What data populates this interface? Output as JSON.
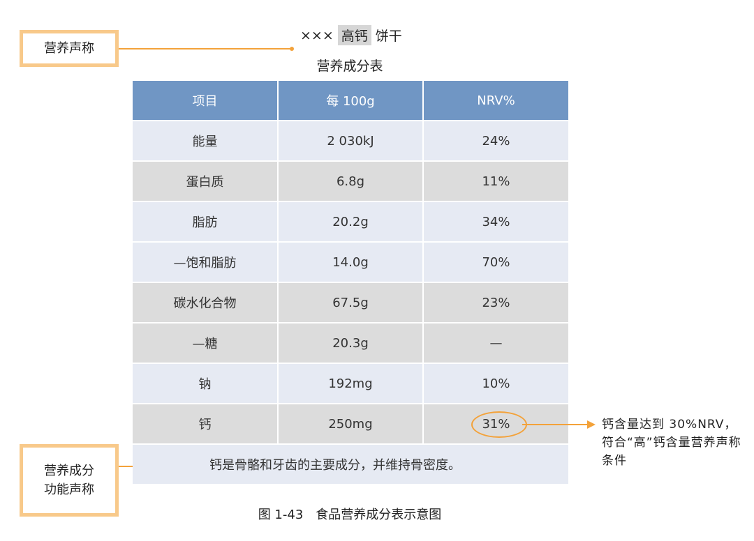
{
  "header": {
    "product_prefix": "×××",
    "highlight": "高钙",
    "product_suffix": "饼干",
    "subtitle": "营养成分表"
  },
  "callouts": {
    "claim_label": "营养声称",
    "function_label_line1": "营养成分",
    "function_label_line2": "功能声称"
  },
  "table": {
    "columns": [
      "项目",
      "每 100g",
      "NRV%"
    ],
    "rows": [
      [
        "能量",
        "2 030kJ",
        "24%"
      ],
      [
        "蛋白质",
        "6.8g",
        "11%"
      ],
      [
        "脂肪",
        "20.2g",
        "34%"
      ],
      [
        "—饱和脂肪",
        "14.0g",
        "70%"
      ],
      [
        "碳水化合物",
        "67.5g",
        "23%"
      ],
      [
        "—糖",
        "20.3g",
        "—"
      ],
      [
        "钠",
        "192mg",
        "10%"
      ],
      [
        "钙",
        "250mg",
        "31%"
      ]
    ],
    "footer": "钙是骨骼和牙齿的主要成分，并维持骨密度。"
  },
  "note": "钙含量达到 30%NRV，符合“高”钙含量营养声称条件",
  "caption": "图 1-43　食品营养成分表示意图",
  "colors": {
    "header_bg": "#7096c4",
    "row_light": "#e6eaf3",
    "row_gray": "#dcdcdc",
    "accent_orange": "#f3a23a",
    "callout_border": "#f8c98a"
  }
}
